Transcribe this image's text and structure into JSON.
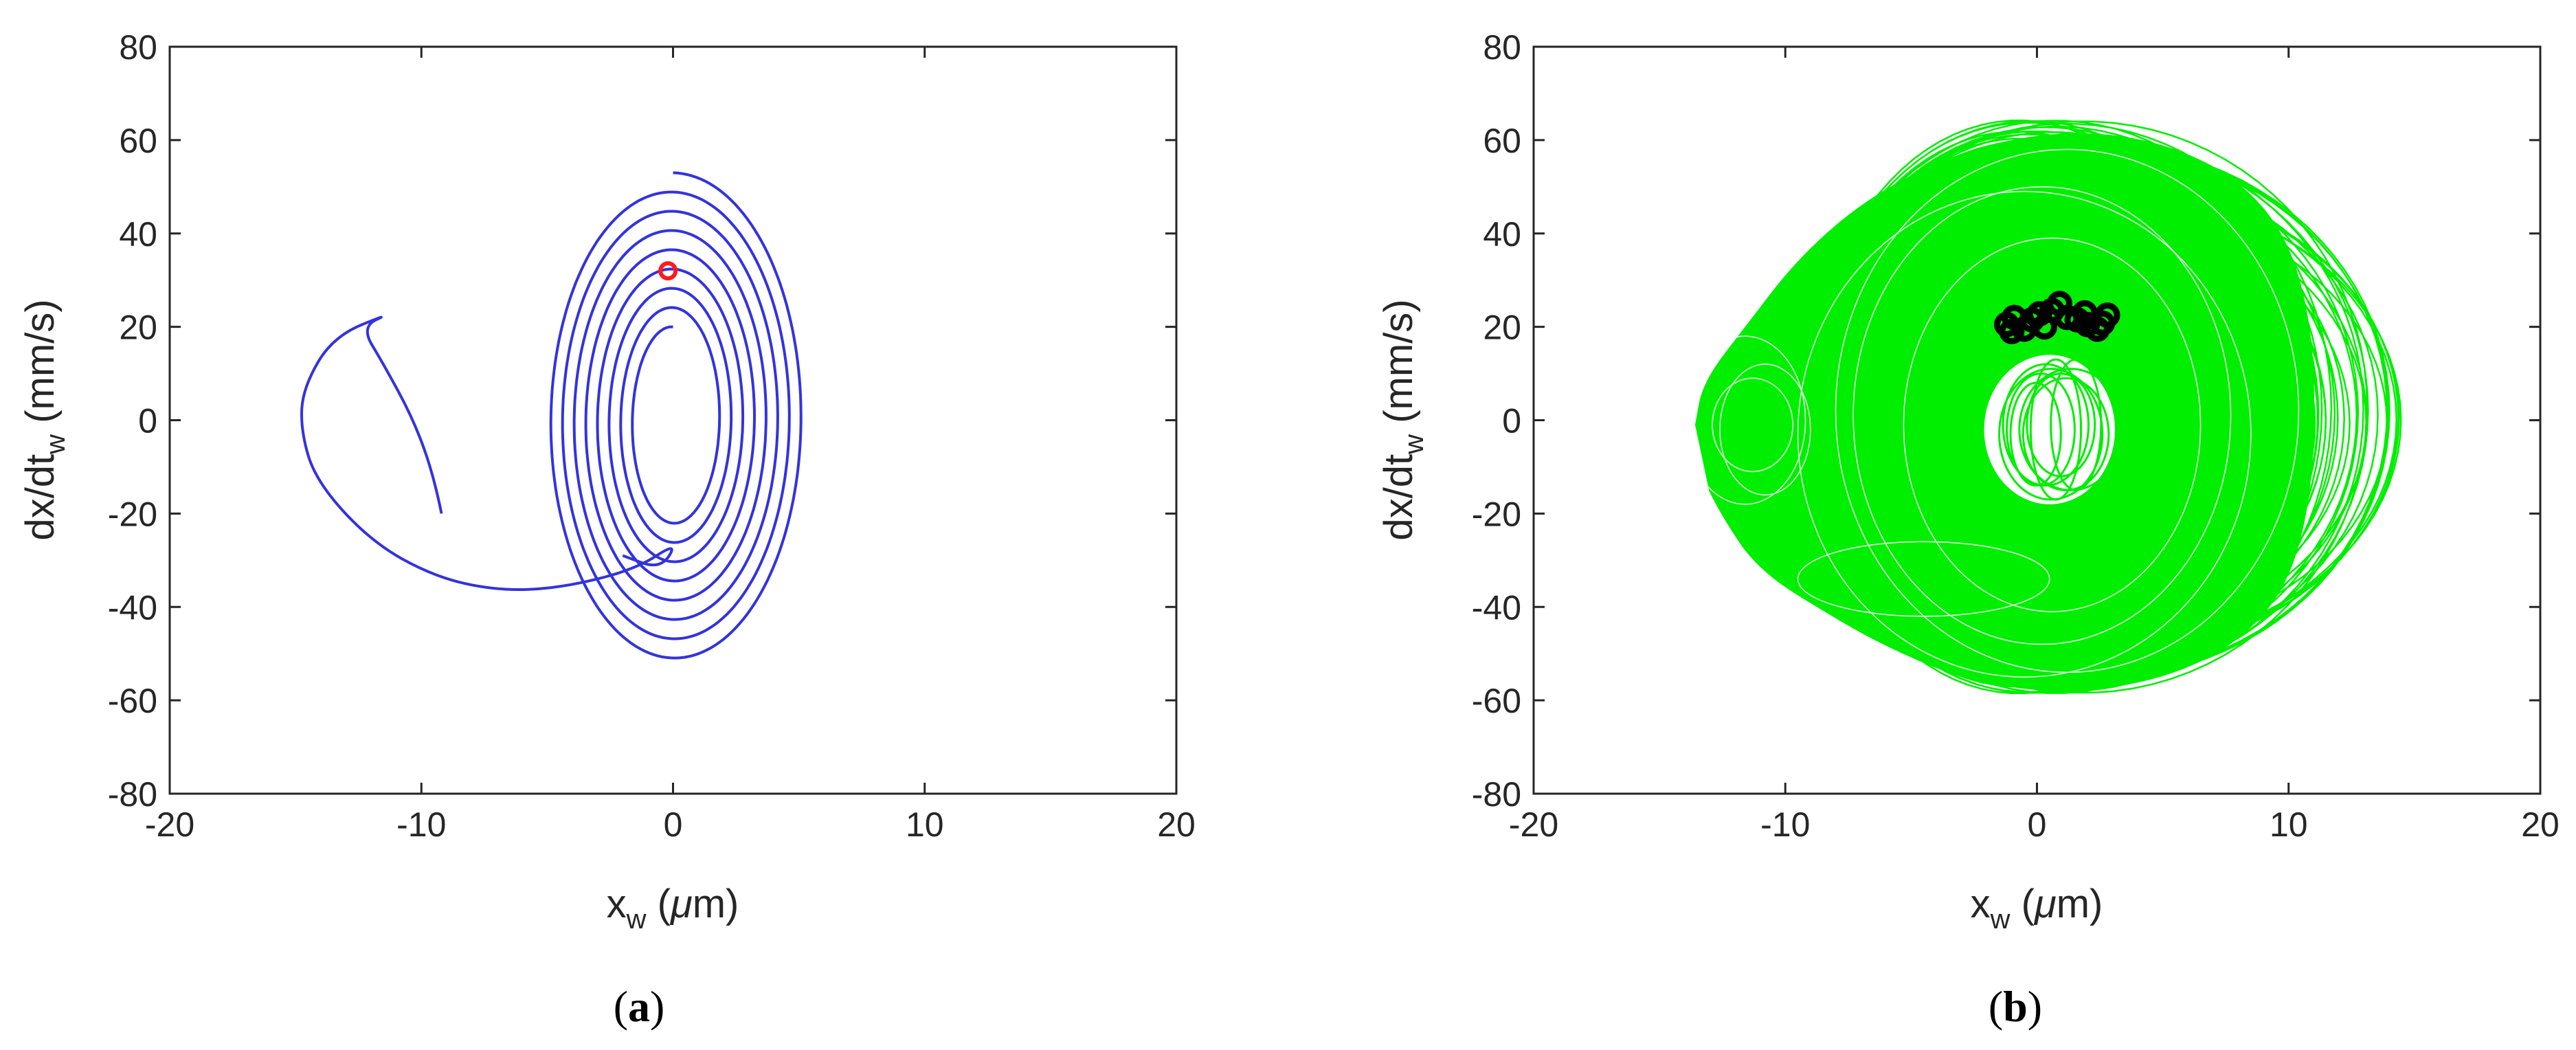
{
  "chart_data": [
    {
      "type": "scatter",
      "panel_label_open": "(",
      "panel_label_letter": "a",
      "panel_label_close": ")",
      "xlabel_main": "x",
      "xlabel_sub": "w",
      "xlabel_unit_open": " (",
      "xlabel_unit_mu": "μ",
      "xlabel_unit_rest": "m)",
      "ylabel_main": "dx/dt",
      "ylabel_sub": "w",
      "ylabel_unit": " (mm/s)",
      "xlim": [
        -20,
        20
      ],
      "ylim": [
        -80,
        80
      ],
      "xticks": [
        "-20",
        "-10",
        "0",
        "10",
        "20"
      ],
      "yticks": [
        "80",
        "60",
        "40",
        "20",
        "0",
        "-20",
        "-40",
        "-60",
        "-80"
      ],
      "grid": false,
      "series": [
        {
          "kind": "trajectory",
          "color": "#3333dd",
          "transient_points": [
            [
              -9.2,
              -20
            ],
            [
              -9.5,
              -12
            ],
            [
              -10.3,
              0
            ],
            [
              -11.5,
              12
            ],
            [
              -12.4,
              20
            ],
            [
              -11.2,
              23
            ],
            [
              -13.5,
              18
            ],
            [
              -14.7,
              7
            ],
            [
              -14.8,
              -2
            ],
            [
              -14.2,
              -13
            ],
            [
              -12,
              -26
            ],
            [
              -9.5,
              -33.5
            ],
            [
              -7,
              -36.5
            ],
            [
              -4.5,
              -36
            ],
            [
              -1.5,
              -32
            ],
            [
              0.2,
              -26
            ],
            [
              -0.5,
              -32
            ],
            [
              -2,
              -29
            ]
          ],
          "spiral": {
            "center": [
              0,
              0
            ],
            "start_radius": [
              5.2,
              53
            ],
            "end_radius": [
              1.5,
              20
            ],
            "turns": 8
          }
        },
        {
          "kind": "marker",
          "color": "#ff1a1a",
          "points": [
            [
              -0.2,
              32
            ]
          ]
        }
      ]
    },
    {
      "type": "scatter",
      "panel_label_open": "(",
      "panel_label_letter": "b",
      "panel_label_close": ")",
      "xlabel_main": "x",
      "xlabel_sub": "w",
      "xlabel_unit_open": " (",
      "xlabel_unit_mu": "μ",
      "xlabel_unit_rest": "m)",
      "ylabel_main": "dx/dt",
      "ylabel_sub": "w",
      "ylabel_unit": " (mm/s)",
      "xlim": [
        -20,
        20
      ],
      "ylim": [
        -80,
        80
      ],
      "xticks": [
        "-20",
        "-10",
        "0",
        "10",
        "20"
      ],
      "yticks": [
        "80",
        "60",
        "40",
        "20",
        "0",
        "-20",
        "-40",
        "-60",
        "-80"
      ],
      "grid": false,
      "series": [
        {
          "kind": "chaotic-attractor",
          "color": "#00ee00",
          "extent_x": [
            -13.5,
            11
          ],
          "extent_y": [
            -58,
            62
          ]
        },
        {
          "kind": "poincare-markers",
          "color": "#000000",
          "points": [
            [
              -1.2,
              20.5
            ],
            [
              -0.9,
              22
            ],
            [
              -0.5,
              19.5
            ],
            [
              -0.2,
              21.5
            ],
            [
              0.3,
              20
            ],
            [
              0.6,
              23.5
            ],
            [
              0.9,
              25
            ],
            [
              1.2,
              22
            ],
            [
              1.6,
              21.5
            ],
            [
              2.0,
              20.5
            ],
            [
              2.4,
              19.5
            ],
            [
              2.8,
              22.5
            ],
            [
              -1.0,
              19
            ],
            [
              0.1,
              22.8
            ],
            [
              1.9,
              23
            ],
            [
              2.6,
              20.8
            ]
          ]
        }
      ]
    }
  ]
}
